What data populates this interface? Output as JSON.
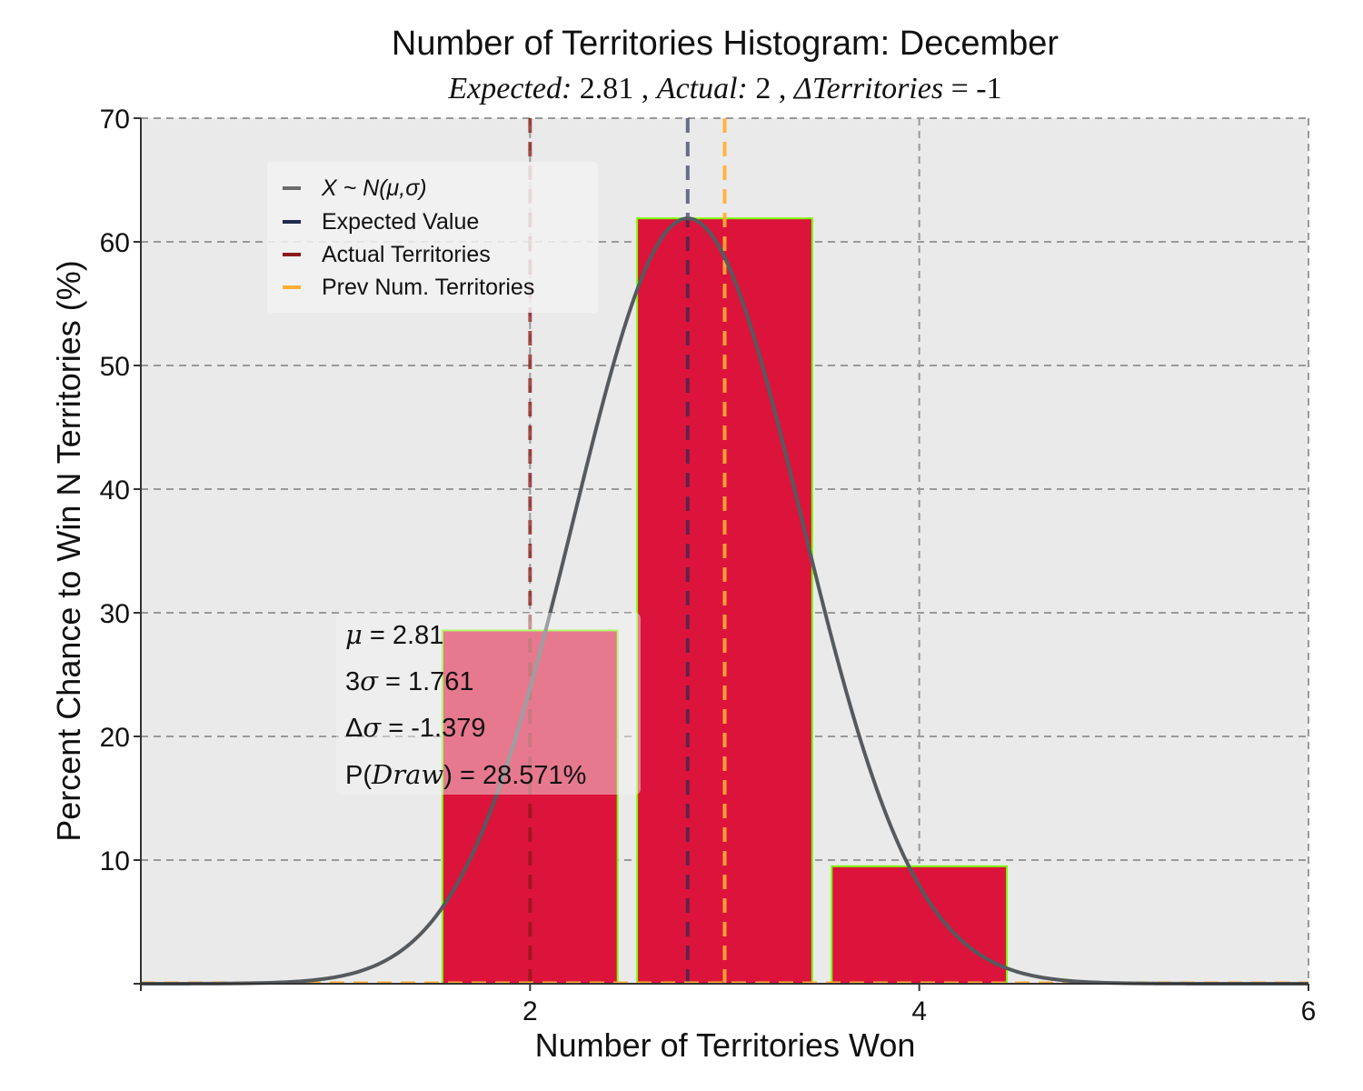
{
  "colors": {
    "plot_bg": "#eaeaea",
    "bar_fill": "#dc143c",
    "bar_edge": "#7cfc00",
    "pdf_line": "#555a5e",
    "expected": "#1f2a4f",
    "actual": "#8b1a1a",
    "previous": "#ffae33",
    "grid": "#999999"
  },
  "chart_data": {
    "type": "bar",
    "title": "Number of Territories Histogram: December",
    "subtitle": {
      "expected_label": "Expected:",
      "expected_value": "2.81",
      "sep1": " , ",
      "actual_label": "Actual:",
      "actual_value": "2",
      "sep2": " , ",
      "delta_label": "ΔTerritories",
      "delta_eq": "= ",
      "delta_value": "-1"
    },
    "xlabel": "Number of Territories Won",
    "ylabel": "Percent Chance to Win N Territories (%)",
    "xlim": [
      0,
      6
    ],
    "ylim": [
      0,
      70
    ],
    "x_ticks": [
      2,
      4,
      6
    ],
    "x_tick_labels": [
      "2",
      "4",
      "6"
    ],
    "y_ticks": [
      10,
      20,
      30,
      40,
      50,
      60,
      70
    ],
    "y_tick_labels": [
      "10",
      "20",
      "30",
      "40",
      "50",
      "60",
      "70"
    ],
    "grid": true,
    "bars": [
      {
        "x": 2,
        "value": 28.571
      },
      {
        "x": 3,
        "value": 61.9
      },
      {
        "x": 4,
        "value": 9.5
      }
    ],
    "bar_width": 0.9,
    "normal_curve": {
      "mu": 2.81,
      "sigma": 0.587,
      "peak": 61.9
    },
    "vlines": {
      "expected_value": 2.81,
      "actual_territories": 2,
      "prev_territories": 3
    },
    "legend": {
      "position": "upper-left",
      "entries": [
        {
          "label": "X ~ N(μ,σ)",
          "color": "#6b6b6b"
        },
        {
          "label": "Expected Value",
          "color": "#1f2a4f"
        },
        {
          "label": "Actual Territories",
          "color": "#8b1a1a"
        },
        {
          "label": "Prev Num. Territories",
          "color": "#ffae33"
        }
      ]
    },
    "stats": {
      "mu_sym": "μ",
      "mu_val": " = 2.81",
      "sigma_pre": "3",
      "sigma_sym": "σ",
      "sigma_val": " = 1.761",
      "delta_pre": "Δ",
      "delta_sym": "σ",
      "delta_val": " = -1.379",
      "p_pre": "P(",
      "p_sym": "Draw",
      "p_val": ") = 28.571%"
    }
  }
}
